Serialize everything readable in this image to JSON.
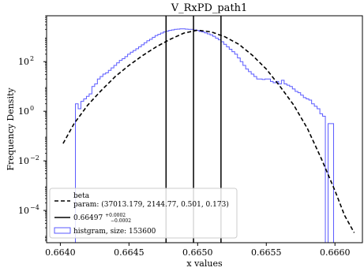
{
  "chart_data": {
    "type": "line",
    "title": "V_RxPD_path1",
    "xlabel": "x values",
    "ylabel": "Frequency Density",
    "xlim": [
      0.6639,
      0.6662
    ],
    "ylim_log10": [
      -5.3,
      3.85
    ],
    "y_scale": "log",
    "x_ticks": [
      {
        "value": 0.664,
        "label": "0.6640"
      },
      {
        "value": 0.6645,
        "label": "0.6645"
      },
      {
        "value": 0.665,
        "label": "0.6650"
      },
      {
        "value": 0.6655,
        "label": "0.6655"
      },
      {
        "value": 0.666,
        "label": "0.6660"
      }
    ],
    "y_ticks": [
      {
        "exp": 2,
        "label": "10",
        "sup": "2"
      },
      {
        "exp": 0,
        "label": "10",
        "sup": "0"
      },
      {
        "exp": -2,
        "label": "10",
        "sup": "−2"
      },
      {
        "exp": -4,
        "label": "10",
        "sup": "−4"
      }
    ],
    "beta_fit": {
      "label": "beta",
      "param_text": "param: (37013.179, 2144.77, 0.501, 0.173)",
      "color": "#000000",
      "style": "dashed",
      "x": [
        0.66402,
        0.6641,
        0.6642,
        0.6643,
        0.6644,
        0.6645,
        0.6646,
        0.6647,
        0.6648,
        0.6649,
        0.665,
        0.6651,
        0.6652,
        0.6653,
        0.6654,
        0.6655,
        0.6656,
        0.6657,
        0.6658,
        0.6659,
        0.666,
        0.66607,
        0.66614
      ],
      "log10_y": [
        -1.3,
        -0.5,
        0.25,
        0.85,
        1.4,
        1.85,
        2.25,
        2.6,
        2.9,
        3.15,
        3.27,
        3.2,
        3.0,
        2.7,
        2.25,
        1.7,
        1.0,
        0.25,
        -0.7,
        -1.9,
        -3.2,
        -4.2,
        -4.9
      ]
    },
    "vertical_lines": {
      "label": "0.66497",
      "upper": "+0.0002",
      "lower": "−0.0002",
      "color": "#000000",
      "x": [
        0.66477,
        0.66497,
        0.66517
      ]
    },
    "histogram": {
      "label": "histgram, size: 153600",
      "color": "#5a5aff",
      "edges": [
        0.66411,
        0.66413,
        0.66415,
        0.66417,
        0.66419,
        0.66421,
        0.66423,
        0.66425,
        0.66427,
        0.66429,
        0.66431,
        0.66433,
        0.66435,
        0.66437,
        0.66439,
        0.66441,
        0.66443,
        0.66445,
        0.66447,
        0.66449,
        0.66451,
        0.66453,
        0.66455,
        0.66457,
        0.66459,
        0.66461,
        0.66463,
        0.66465,
        0.66467,
        0.66469,
        0.66471,
        0.66473,
        0.66475,
        0.66477,
        0.66479,
        0.66481,
        0.66483,
        0.66485,
        0.66487,
        0.66489,
        0.66491,
        0.66493,
        0.66495,
        0.66497,
        0.66499,
        0.66501,
        0.66503,
        0.66505,
        0.66507,
        0.66509,
        0.66511,
        0.66513,
        0.66515,
        0.66517,
        0.66519,
        0.66521,
        0.66523,
        0.66525,
        0.66527,
        0.66529,
        0.66531,
        0.66533,
        0.66535,
        0.66537,
        0.66539,
        0.66541,
        0.66543,
        0.66545,
        0.66547,
        0.66549,
        0.66551,
        0.66553,
        0.66555,
        0.66557,
        0.66559,
        0.66561,
        0.66563,
        0.66565,
        0.66567,
        0.66569,
        0.66571,
        0.66573,
        0.66575,
        0.66577,
        0.66579,
        0.66581,
        0.66583,
        0.66585,
        0.66587,
        0.66589,
        0.66591,
        0.66593,
        0.66595,
        0.66597,
        0.66599,
        0.66601,
        0.66603,
        0.66605
      ],
      "log10_density": [
        0.3,
        0.1,
        0.4,
        0.5,
        0.6,
        0.7,
        1.0,
        1.1,
        1.3,
        1.4,
        1.5,
        1.55,
        1.65,
        1.75,
        1.85,
        1.95,
        2.05,
        2.12,
        2.2,
        2.3,
        2.38,
        2.45,
        2.52,
        2.6,
        2.68,
        2.76,
        2.84,
        2.9,
        2.98,
        3.05,
        3.1,
        3.15,
        3.2,
        3.23,
        3.26,
        3.28,
        3.3,
        3.31,
        3.32,
        3.32,
        3.31,
        3.3,
        3.3,
        3.28,
        3.26,
        3.22,
        3.2,
        3.16,
        3.12,
        3.08,
        3.02,
        2.95,
        2.88,
        2.8,
        2.7,
        2.6,
        2.5,
        2.4,
        2.3,
        2.15,
        2.0,
        1.85,
        1.7,
        1.6,
        1.5,
        1.4,
        1.3,
        1.3,
        1.28,
        1.3,
        1.3,
        1.2,
        1.15,
        1.2,
        1.1,
        1.25,
        1.1,
        1.05,
        1.0,
        0.9,
        0.8,
        0.75,
        0.65,
        0.55,
        0.5,
        0.45,
        0.3,
        0.2,
        0.1,
        -0.1,
        -0.2,
        -5.5,
        -0.5,
        -0.5,
        -5.5,
        -5.5,
        -5.5
      ]
    },
    "legend_location": "lower-left",
    "grid": false
  }
}
